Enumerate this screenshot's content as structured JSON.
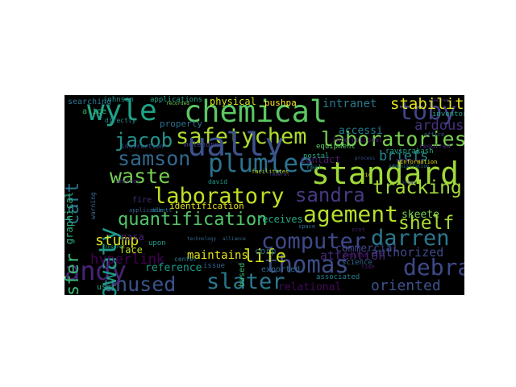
{
  "word_cloud": {
    "background_color": "#000000",
    "words": [
      {
        "text": "chemical",
        "color": "#5cc863"
      },
      {
        "text": "standard",
        "color": "#a0da39"
      },
      {
        "text": "laboratories",
        "color": "#7ad151"
      },
      {
        "text": "safetychem",
        "color": "#addc30"
      },
      {
        "text": "plumlee",
        "color": "#2c728e"
      },
      {
        "text": "laboratory",
        "color": "#c2df23"
      },
      {
        "text": "quantification",
        "color": "#52c569"
      },
      {
        "text": "ually",
        "color": "#3b528b"
      },
      {
        "text": "agement",
        "color": "#b5de2b"
      },
      {
        "text": "samson",
        "color": "#31688e"
      },
      {
        "text": "waste",
        "color": "#75d054"
      },
      {
        "text": "toby",
        "color": "#414487"
      },
      {
        "text": "computer",
        "color": "#3e4989"
      },
      {
        "text": "darren",
        "color": "#2a788e"
      },
      {
        "text": "thomas",
        "color": "#3d4e8a"
      },
      {
        "text": "slater",
        "color": "#2a788e"
      },
      {
        "text": "unused",
        "color": "#3b528b"
      },
      {
        "text": "andy",
        "color": "#482475"
      },
      {
        "text": "debrah",
        "color": "#3e4989"
      },
      {
        "text": "sandra",
        "color": "#443a83"
      },
      {
        "text": "tracking",
        "color": "#a5db36"
      },
      {
        "text": "shelf",
        "color": "#a8db34"
      },
      {
        "text": "wyle",
        "color": "#1fa287"
      },
      {
        "text": "jacob",
        "color": "#21918c"
      },
      {
        "text": "transfer",
        "color": "#3aba76"
      },
      {
        "text": "cart",
        "color": "#2a768e"
      },
      {
        "text": "holowaty",
        "color": "#1f9a8a"
      },
      {
        "text": "stump",
        "color": "#d8e219"
      },
      {
        "text": "life",
        "color": "#d0e11c"
      },
      {
        "text": "stability",
        "color": "#e5e419"
      },
      {
        "text": "ardous",
        "color": "#46327e"
      },
      {
        "text": "oriented",
        "color": "#3b528b"
      },
      {
        "text": "authorized",
        "color": "#3e4989"
      },
      {
        "text": "attention",
        "color": "#482878"
      },
      {
        "text": "hyperlink",
        "color": "#440154"
      },
      {
        "text": "maintains",
        "color": "#e5e419"
      },
      {
        "text": "relational",
        "color": "#46085c"
      },
      {
        "text": "intranet",
        "color": "#2a788e"
      },
      {
        "text": "briefs",
        "color": "#25848e"
      },
      {
        "text": "contact",
        "color": "#481a6c"
      },
      {
        "text": "accessi",
        "color": "#287d8e"
      },
      {
        "text": "physical",
        "color": "#d2e21b"
      },
      {
        "text": "skeete",
        "color": "#7ad151"
      },
      {
        "text": "commercial",
        "color": "#404688"
      },
      {
        "text": "receives",
        "color": "#22a884"
      },
      {
        "text": "reference",
        "color": "#1f9a8a"
      },
      {
        "text": "identification",
        "color": "#e5e419"
      },
      {
        "text": "face",
        "color": "#bddf26"
      },
      {
        "text": "nasa",
        "color": "#482475"
      },
      {
        "text": "corp",
        "color": "#2c728e"
      },
      {
        "text": "graphical",
        "color": "#2fb47c"
      },
      {
        "text": "pushpa",
        "color": "#fde725"
      },
      {
        "text": "property",
        "color": "#2c728e"
      },
      {
        "text": "alice",
        "color": "#35b779"
      },
      {
        "text": "searching",
        "color": "#2a788e"
      },
      {
        "text": "johnson",
        "color": "#21918c"
      },
      {
        "text": "applications",
        "color": "#20a386"
      },
      {
        "text": "user",
        "color": "#27ad81"
      },
      {
        "text": "exported",
        "color": "#2f6c8e"
      },
      {
        "text": "associated",
        "color": "#26828e"
      },
      {
        "text": "science",
        "color": "#2f6c8e"
      },
      {
        "text": "based",
        "color": "#3aba76"
      },
      {
        "text": "center",
        "color": "#2a788e"
      },
      {
        "text": "upon",
        "color": "#1f9e89"
      },
      {
        "text": "fire",
        "color": "#472d7b"
      },
      {
        "text": "issue",
        "color": "#33638d"
      },
      {
        "text": "directly",
        "color": "#21918c"
      },
      {
        "text": "instruction",
        "color": "#3b528b"
      },
      {
        "text": "melendrez",
        "color": "#414487"
      },
      {
        "text": "equipment",
        "color": "#5ec962"
      },
      {
        "text": "postal",
        "color": "#25ab82"
      },
      {
        "text": "required",
        "color": "#482878"
      },
      {
        "text": "inventory",
        "color": "#20a386"
      },
      {
        "text": "raviprakash",
        "color": "#22a884"
      },
      {
        "text": "analysis",
        "color": "#440154"
      },
      {
        "text": "international",
        "color": "#482475"
      },
      {
        "text": "information",
        "color": "#dde318"
      },
      {
        "text": "warning",
        "color": "#31688e"
      },
      {
        "text": "whitney",
        "color": "#472c7a"
      },
      {
        "text": "facilitates",
        "color": "#b8de29"
      },
      {
        "text": "david",
        "color": "#1e9b8a"
      },
      {
        "text": "space",
        "color": "#2c728e"
      },
      {
        "text": "real",
        "color": "#25848e"
      },
      {
        "text": "scot",
        "color": "#481f70"
      },
      {
        "text": "program",
        "color": "#471365"
      },
      {
        "text": "time",
        "color": "#48186a"
      },
      {
        "text": "vic",
        "color": "#d2e21b"
      },
      {
        "text": "office",
        "color": "#3b528b"
      },
      {
        "text": "barnes",
        "color": "#46337f"
      },
      {
        "text": "organ",
        "color": "#424086"
      },
      {
        "text": "applicable",
        "color": "#365c8d"
      },
      {
        "text": "technology",
        "color": "#34618d"
      },
      {
        "text": "alliance",
        "color": "#2f6c8e"
      },
      {
        "text": "administration",
        "color": "#2d708e"
      },
      {
        "text": "recorded",
        "color": "#7ad151"
      },
      {
        "text": "abbott",
        "color": "#2a788e"
      },
      {
        "text": "insure",
        "color": "#1fa088"
      },
      {
        "text": "process",
        "color": "#3b528b"
      },
      {
        "text": "federal",
        "color": "#443983"
      }
    ]
  }
}
